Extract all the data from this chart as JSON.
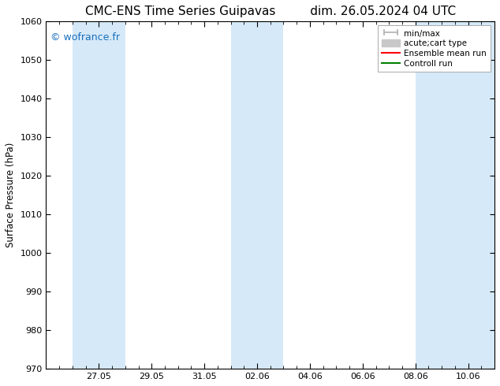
{
  "title_left": "CMC-ENS Time Series Guipavas",
  "title_right": "dim. 26.05.2024 04 UTC",
  "ylabel": "Surface Pressure (hPa)",
  "ylim": [
    970,
    1060
  ],
  "yticks": [
    970,
    980,
    990,
    1000,
    1010,
    1020,
    1030,
    1040,
    1050,
    1060
  ],
  "xlim_days": [
    0,
    17
  ],
  "xtick_labels": [
    "27.05",
    "29.05",
    "31.05",
    "02.06",
    "04.06",
    "06.06",
    "08.06",
    "10.06"
  ],
  "xtick_days": [
    2,
    4,
    6,
    8,
    10,
    12,
    14,
    16
  ],
  "shaded_bands": [
    {
      "x_start": 1,
      "x_end": 3
    },
    {
      "x_start": 7,
      "x_end": 9
    },
    {
      "x_start": 14,
      "x_end": 17
    }
  ],
  "band_color": "#d6e9f8",
  "watermark": "© wofrance.fr",
  "watermark_color": "#1a6fbf",
  "legend_entries": [
    {
      "label": "min/max",
      "color": "#b0b0b0",
      "style": "errorbar"
    },
    {
      "label": "acute;cart type",
      "color": "#c8c8c8",
      "style": "patch"
    },
    {
      "label": "Ensemble mean run",
      "color": "red",
      "style": "line"
    },
    {
      "label": "Controll run",
      "color": "green",
      "style": "line"
    }
  ],
  "bg_color": "#ffffff",
  "tick_color": "#000000",
  "title_fontsize": 11,
  "label_fontsize": 8.5,
  "tick_fontsize": 8,
  "legend_fontsize": 7.5
}
